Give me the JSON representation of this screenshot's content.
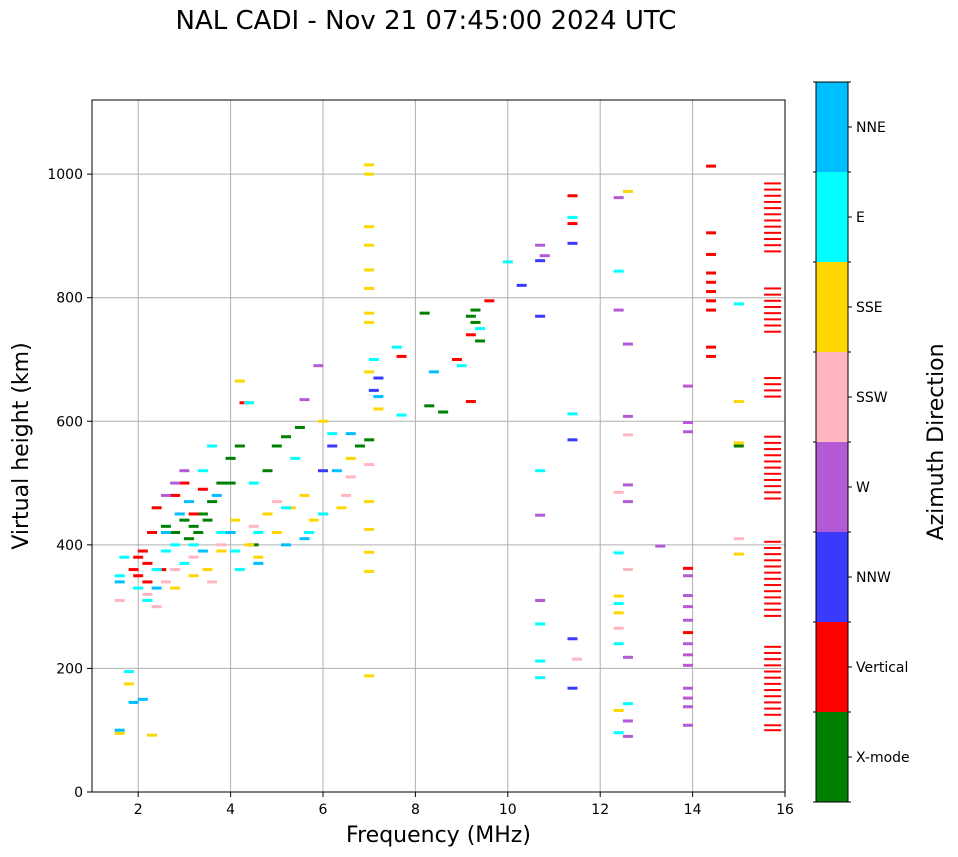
{
  "chart_data": {
    "type": "scatter",
    "title": "NAL CADI - Nov 21 07:45:00 2024 UTC",
    "xlabel": "Frequency (MHz)",
    "ylabel": "Virtual height (km)",
    "xlim": [
      1,
      16
    ],
    "ylim": [
      0,
      1120
    ],
    "xticks": [
      2,
      4,
      6,
      8,
      10,
      12,
      14,
      16
    ],
    "yticks": [
      0,
      200,
      400,
      600,
      800,
      1000
    ],
    "grid": true,
    "colorbar": {
      "label": "Azimuth Direction",
      "categories": [
        {
          "name": "X-mode",
          "color": "#008000"
        },
        {
          "name": "Vertical",
          "color": "#ff0000"
        },
        {
          "name": "NNW",
          "color": "#3a3aff"
        },
        {
          "name": "W",
          "color": "#b55ad6"
        },
        {
          "name": "SSW",
          "color": "#ffb6c1"
        },
        {
          "name": "SSE",
          "color": "#ffd700"
        },
        {
          "name": "E",
          "color": "#00ffff"
        },
        {
          "name": "NNE",
          "color": "#00bfff"
        }
      ]
    },
    "series": [
      {
        "name": "X-mode",
        "points": [
          [
            2.6,
            430
          ],
          [
            2.8,
            420
          ],
          [
            3.0,
            440
          ],
          [
            3.1,
            410
          ],
          [
            3.2,
            430
          ],
          [
            3.3,
            420
          ],
          [
            3.4,
            450
          ],
          [
            3.5,
            440
          ],
          [
            3.6,
            470
          ],
          [
            3.8,
            500
          ],
          [
            4.0,
            540
          ],
          [
            4.0,
            500
          ],
          [
            4.2,
            560
          ],
          [
            4.5,
            400
          ],
          [
            4.8,
            520
          ],
          [
            5.0,
            560
          ],
          [
            5.2,
            575
          ],
          [
            5.5,
            590
          ],
          [
            6.8,
            560
          ],
          [
            7.0,
            570
          ],
          [
            8.2,
            775
          ],
          [
            8.3,
            625
          ],
          [
            8.6,
            615
          ],
          [
            9.2,
            770
          ],
          [
            9.3,
            760
          ],
          [
            9.3,
            780
          ],
          [
            9.4,
            730
          ],
          [
            15.0,
            560
          ]
        ]
      },
      {
        "name": "Vertical",
        "points": [
          [
            1.9,
            360
          ],
          [
            2.0,
            350
          ],
          [
            2.0,
            380
          ],
          [
            2.1,
            390
          ],
          [
            2.2,
            340
          ],
          [
            2.2,
            370
          ],
          [
            2.3,
            420
          ],
          [
            2.4,
            460
          ],
          [
            2.5,
            360
          ],
          [
            2.8,
            480
          ],
          [
            3.0,
            500
          ],
          [
            3.2,
            450
          ],
          [
            3.4,
            490
          ],
          [
            4.3,
            630
          ],
          [
            7.7,
            705
          ],
          [
            8.9,
            700
          ],
          [
            9.2,
            740
          ],
          [
            9.2,
            632
          ],
          [
            9.6,
            795
          ],
          [
            11.4,
            965
          ],
          [
            11.4,
            920
          ],
          [
            14.4,
            1013
          ],
          [
            14.4,
            905
          ],
          [
            14.4,
            870
          ],
          [
            14.4,
            840
          ],
          [
            14.4,
            825
          ],
          [
            14.4,
            810
          ],
          [
            14.4,
            795
          ],
          [
            14.4,
            780
          ],
          [
            14.4,
            720
          ],
          [
            14.4,
            705
          ],
          [
            13.9,
            362
          ],
          [
            13.9,
            258
          ]
        ]
      },
      {
        "name": "NNW",
        "points": [
          [
            7.1,
            650
          ],
          [
            7.2,
            670
          ],
          [
            10.3,
            820
          ],
          [
            10.7,
            860
          ],
          [
            10.7,
            770
          ],
          [
            11.4,
            888
          ],
          [
            11.4,
            570
          ],
          [
            11.4,
            248
          ],
          [
            11.4,
            168
          ],
          [
            6.0,
            520
          ],
          [
            6.2,
            560
          ]
        ]
      },
      {
        "name": "W",
        "points": [
          [
            2.6,
            480
          ],
          [
            2.8,
            500
          ],
          [
            3.0,
            520
          ],
          [
            5.6,
            635
          ],
          [
            5.9,
            690
          ],
          [
            10.7,
            885
          ],
          [
            10.8,
            868
          ],
          [
            10.7,
            448
          ],
          [
            10.7,
            310
          ],
          [
            12.4,
            962
          ],
          [
            12.4,
            780
          ],
          [
            12.6,
            725
          ],
          [
            12.6,
            608
          ],
          [
            12.6,
            497
          ],
          [
            12.6,
            470
          ],
          [
            12.6,
            218
          ],
          [
            12.6,
            115
          ],
          [
            12.6,
            90
          ],
          [
            13.3,
            398
          ],
          [
            13.9,
            657
          ],
          [
            13.9,
            598
          ],
          [
            13.9,
            583
          ],
          [
            13.9,
            350
          ],
          [
            13.9,
            318
          ],
          [
            13.9,
            300
          ],
          [
            13.9,
            278
          ],
          [
            13.9,
            240
          ],
          [
            13.9,
            222
          ],
          [
            13.9,
            205
          ],
          [
            13.9,
            168
          ],
          [
            13.9,
            152
          ],
          [
            13.9,
            138
          ],
          [
            13.9,
            108
          ]
        ]
      },
      {
        "name": "SSW",
        "points": [
          [
            1.6,
            310
          ],
          [
            2.2,
            320
          ],
          [
            2.4,
            300
          ],
          [
            2.6,
            340
          ],
          [
            2.8,
            360
          ],
          [
            3.2,
            380
          ],
          [
            3.6,
            340
          ],
          [
            3.8,
            400
          ],
          [
            4.5,
            430
          ],
          [
            5.0,
            470
          ],
          [
            6.5,
            480
          ],
          [
            6.6,
            510
          ],
          [
            7.0,
            530
          ],
          [
            12.4,
            485
          ],
          [
            12.6,
            578
          ],
          [
            12.6,
            360
          ],
          [
            12.4,
            265
          ],
          [
            11.5,
            215
          ],
          [
            15.0,
            410
          ]
        ]
      },
      {
        "name": "SSE",
        "points": [
          [
            1.6,
            95
          ],
          [
            1.8,
            175
          ],
          [
            2.3,
            92
          ],
          [
            2.8,
            330
          ],
          [
            3.2,
            350
          ],
          [
            3.5,
            360
          ],
          [
            3.8,
            390
          ],
          [
            4.1,
            440
          ],
          [
            4.2,
            665
          ],
          [
            4.4,
            400
          ],
          [
            4.6,
            380
          ],
          [
            4.8,
            450
          ],
          [
            5.0,
            420
          ],
          [
            5.3,
            460
          ],
          [
            5.6,
            480
          ],
          [
            5.8,
            440
          ],
          [
            6.0,
            600
          ],
          [
            6.4,
            460
          ],
          [
            6.6,
            540
          ],
          [
            7.0,
            1015
          ],
          [
            7.0,
            1000
          ],
          [
            7.0,
            915
          ],
          [
            7.0,
            885
          ],
          [
            7.0,
            845
          ],
          [
            7.0,
            815
          ],
          [
            7.0,
            775
          ],
          [
            7.0,
            760
          ],
          [
            7.0,
            680
          ],
          [
            7.0,
            470
          ],
          [
            7.0,
            425
          ],
          [
            7.0,
            388
          ],
          [
            7.0,
            357
          ],
          [
            7.0,
            188
          ],
          [
            7.2,
            620
          ],
          [
            12.4,
            317
          ],
          [
            12.4,
            290
          ],
          [
            12.4,
            132
          ],
          [
            12.6,
            972
          ],
          [
            15.0,
            632
          ],
          [
            15.0,
            565
          ],
          [
            15.0,
            385
          ]
        ]
      },
      {
        "name": "E",
        "points": [
          [
            1.6,
            350
          ],
          [
            1.7,
            380
          ],
          [
            1.8,
            195
          ],
          [
            2.0,
            330
          ],
          [
            2.2,
            310
          ],
          [
            2.4,
            360
          ],
          [
            2.6,
            390
          ],
          [
            2.8,
            400
          ],
          [
            3.0,
            370
          ],
          [
            3.2,
            400
          ],
          [
            3.4,
            520
          ],
          [
            3.6,
            560
          ],
          [
            3.8,
            420
          ],
          [
            4.1,
            390
          ],
          [
            4.2,
            360
          ],
          [
            4.4,
            630
          ],
          [
            4.5,
            500
          ],
          [
            4.6,
            420
          ],
          [
            5.2,
            460
          ],
          [
            5.4,
            540
          ],
          [
            5.7,
            420
          ],
          [
            6.0,
            450
          ],
          [
            6.2,
            580
          ],
          [
            7.1,
            700
          ],
          [
            7.6,
            720
          ],
          [
            7.7,
            610
          ],
          [
            9.0,
            690
          ],
          [
            9.4,
            750
          ],
          [
            10.0,
            858
          ],
          [
            10.7,
            520
          ],
          [
            10.7,
            272
          ],
          [
            10.7,
            212
          ],
          [
            10.7,
            185
          ],
          [
            11.4,
            930
          ],
          [
            11.4,
            612
          ],
          [
            12.4,
            843
          ],
          [
            12.4,
            387
          ],
          [
            12.4,
            305
          ],
          [
            12.4,
            240
          ],
          [
            12.4,
            96
          ],
          [
            12.6,
            143
          ],
          [
            15.0,
            790
          ]
        ]
      },
      {
        "name": "NNE",
        "points": [
          [
            1.6,
            100
          ],
          [
            1.6,
            340
          ],
          [
            1.9,
            145
          ],
          [
            2.1,
            150
          ],
          [
            2.4,
            330
          ],
          [
            2.6,
            420
          ],
          [
            2.9,
            450
          ],
          [
            3.1,
            470
          ],
          [
            3.4,
            390
          ],
          [
            3.7,
            480
          ],
          [
            4.0,
            420
          ],
          [
            4.6,
            370
          ],
          [
            5.2,
            400
          ],
          [
            5.6,
            410
          ],
          [
            6.3,
            520
          ],
          [
            6.6,
            580
          ],
          [
            7.2,
            640
          ],
          [
            8.4,
            680
          ]
        ]
      }
    ],
    "rightColumn": {
      "x": 15.7,
      "heights": [
        985,
        975,
        965,
        955,
        945,
        935,
        925,
        915,
        905,
        895,
        885,
        875,
        815,
        805,
        795,
        785,
        775,
        765,
        755,
        745,
        670,
        660,
        650,
        640,
        575,
        565,
        555,
        545,
        535,
        525,
        515,
        505,
        495,
        485,
        475,
        405,
        395,
        385,
        375,
        365,
        355,
        345,
        335,
        325,
        315,
        305,
        295,
        285,
        235,
        225,
        215,
        205,
        195,
        185,
        175,
        165,
        155,
        145,
        135,
        125,
        108,
        100
      ]
    }
  }
}
